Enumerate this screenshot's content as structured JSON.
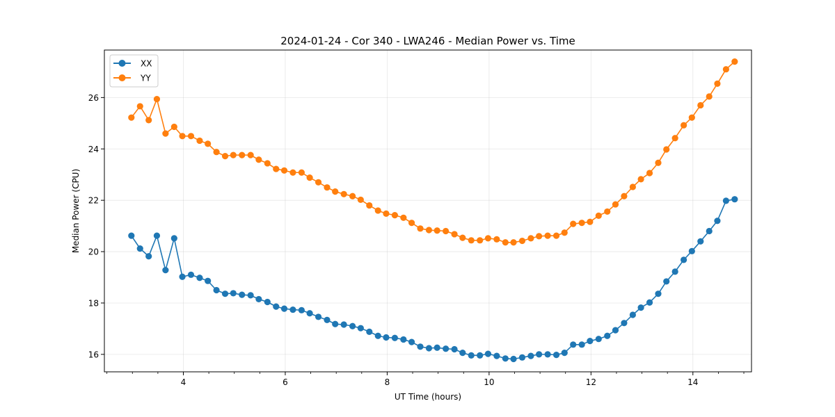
{
  "chart_data": {
    "type": "line",
    "title": "2024-01-24 - Cor 340 - LWA246 - Median Power vs. Time",
    "xlabel": "UT Time (hours)",
    "ylabel": "Median Power (CPU)",
    "xlim": [
      2.45,
      15.15
    ],
    "ylim": [
      15.32,
      27.85
    ],
    "xticks": [
      4,
      6,
      8,
      10,
      12,
      14
    ],
    "xtick_labels": [
      "4",
      "6",
      "8",
      "10",
      "12",
      "14"
    ],
    "yticks": [
      16,
      18,
      20,
      22,
      24,
      26
    ],
    "ytick_labels": [
      "16",
      "18",
      "20",
      "22",
      "24",
      "26"
    ],
    "x_minor_step": 0.5,
    "grid": true,
    "legend_position": "top-left",
    "x": [
      2.98,
      3.15,
      3.32,
      3.48,
      3.65,
      3.82,
      3.98,
      4.15,
      4.32,
      4.48,
      4.65,
      4.82,
      4.98,
      5.15,
      5.32,
      5.48,
      5.65,
      5.82,
      5.98,
      6.15,
      6.32,
      6.48,
      6.65,
      6.82,
      6.98,
      7.15,
      7.32,
      7.48,
      7.65,
      7.82,
      7.98,
      8.15,
      8.32,
      8.48,
      8.65,
      8.82,
      8.98,
      9.15,
      9.32,
      9.48,
      9.65,
      9.82,
      9.98,
      10.15,
      10.32,
      10.48,
      10.65,
      10.82,
      10.98,
      11.15,
      11.32,
      11.48,
      11.65,
      11.82,
      11.98,
      12.15,
      12.32,
      12.48,
      12.65,
      12.82,
      12.98,
      13.15,
      13.32,
      13.48,
      13.65,
      13.82,
      13.98,
      14.15,
      14.32,
      14.48,
      14.65,
      14.82
    ],
    "series": [
      {
        "name": "XX",
        "color": "#1f77b4",
        "values": [
          20.62,
          20.12,
          19.82,
          20.62,
          19.28,
          20.52,
          19.02,
          19.1,
          18.98,
          18.86,
          18.5,
          18.36,
          18.38,
          18.32,
          18.3,
          18.15,
          18.04,
          17.86,
          17.78,
          17.74,
          17.72,
          17.6,
          17.46,
          17.34,
          17.18,
          17.16,
          17.1,
          17.02,
          16.88,
          16.72,
          16.66,
          16.64,
          16.58,
          16.48,
          16.3,
          16.24,
          16.26,
          16.22,
          16.2,
          16.06,
          15.96,
          15.96,
          16.02,
          15.94,
          15.84,
          15.82,
          15.88,
          15.94,
          16.0,
          16.0,
          15.98,
          16.06,
          16.38,
          16.38,
          16.52,
          16.6,
          16.72,
          16.94,
          17.22,
          17.54,
          17.82,
          18.02,
          18.36,
          18.84,
          19.22,
          19.68,
          20.02,
          20.4,
          20.8,
          21.2,
          21.98,
          22.04
        ]
      },
      {
        "name": "YY",
        "color": "#ff7f0e",
        "values": [
          25.22,
          25.66,
          25.12,
          25.94,
          24.6,
          24.86,
          24.5,
          24.5,
          24.32,
          24.2,
          23.88,
          23.72,
          23.76,
          23.76,
          23.76,
          23.58,
          23.44,
          23.22,
          23.16,
          23.08,
          23.08,
          22.88,
          22.7,
          22.5,
          22.34,
          22.24,
          22.16,
          22.02,
          21.8,
          21.6,
          21.48,
          21.42,
          21.32,
          21.12,
          20.9,
          20.84,
          20.82,
          20.8,
          20.68,
          20.54,
          20.44,
          20.44,
          20.52,
          20.48,
          20.36,
          20.36,
          20.42,
          20.52,
          20.6,
          20.62,
          20.62,
          20.74,
          21.08,
          21.12,
          21.16,
          21.4,
          21.56,
          21.84,
          22.16,
          22.52,
          22.82,
          23.06,
          23.46,
          23.98,
          24.42,
          24.92,
          25.22,
          25.7,
          26.04,
          26.54,
          27.1,
          27.4
        ]
      }
    ]
  }
}
